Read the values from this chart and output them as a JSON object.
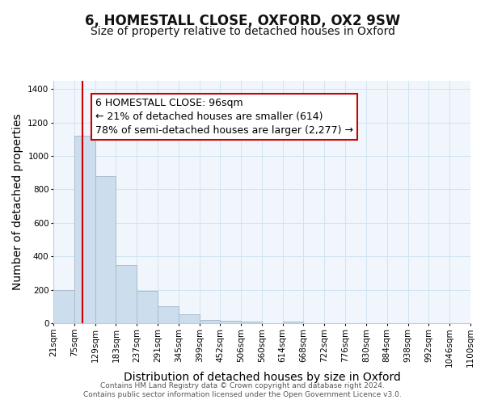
{
  "title": "6, HOMESTALL CLOSE, OXFORD, OX2 9SW",
  "subtitle": "Size of property relative to detached houses in Oxford",
  "xlabel": "Distribution of detached houses by size in Oxford",
  "ylabel": "Number of detached properties",
  "bin_edges": [
    21,
    75,
    129,
    183,
    237,
    291,
    345,
    399,
    452,
    506,
    560,
    614,
    668,
    722,
    776,
    830,
    884,
    938,
    992,
    1046,
    1100
  ],
  "bar_heights": [
    200,
    1120,
    880,
    350,
    195,
    100,
    55,
    20,
    15,
    10,
    0,
    10,
    0,
    0,
    0,
    0,
    0,
    0,
    0,
    0
  ],
  "bar_color": "#ccdded",
  "bar_edge_color": "#aabcce",
  "red_line_x": 96,
  "red_line_color": "#cc0000",
  "annotation_line1": "6 HOMESTALL CLOSE: 96sqm",
  "annotation_line2": "← 21% of detached houses are smaller (614)",
  "annotation_line3": "78% of semi-detached houses are larger (2,277) →",
  "annotation_box_color": "#ffffff",
  "annotation_box_edge": "#cc0000",
  "ylim": [
    0,
    1450
  ],
  "yticks": [
    0,
    200,
    400,
    600,
    800,
    1000,
    1200,
    1400
  ],
  "footer_line1": "Contains HM Land Registry data © Crown copyright and database right 2024.",
  "footer_line2": "Contains public sector information licensed under the Open Government Licence v3.0.",
  "tick_labels": [
    "21sqm",
    "75sqm",
    "129sqm",
    "183sqm",
    "237sqm",
    "291sqm",
    "345sqm",
    "399sqm",
    "452sqm",
    "506sqm",
    "560sqm",
    "614sqm",
    "668sqm",
    "722sqm",
    "776sqm",
    "830sqm",
    "884sqm",
    "938sqm",
    "992sqm",
    "1046sqm",
    "1100sqm"
  ],
  "title_fontsize": 12,
  "subtitle_fontsize": 10,
  "axis_label_fontsize": 10,
  "tick_fontsize": 7.5,
  "annotation_fontsize": 9,
  "footer_fontsize": 6.5,
  "grid_color": "#d0e4f0",
  "bg_color": "#f0f6fc"
}
